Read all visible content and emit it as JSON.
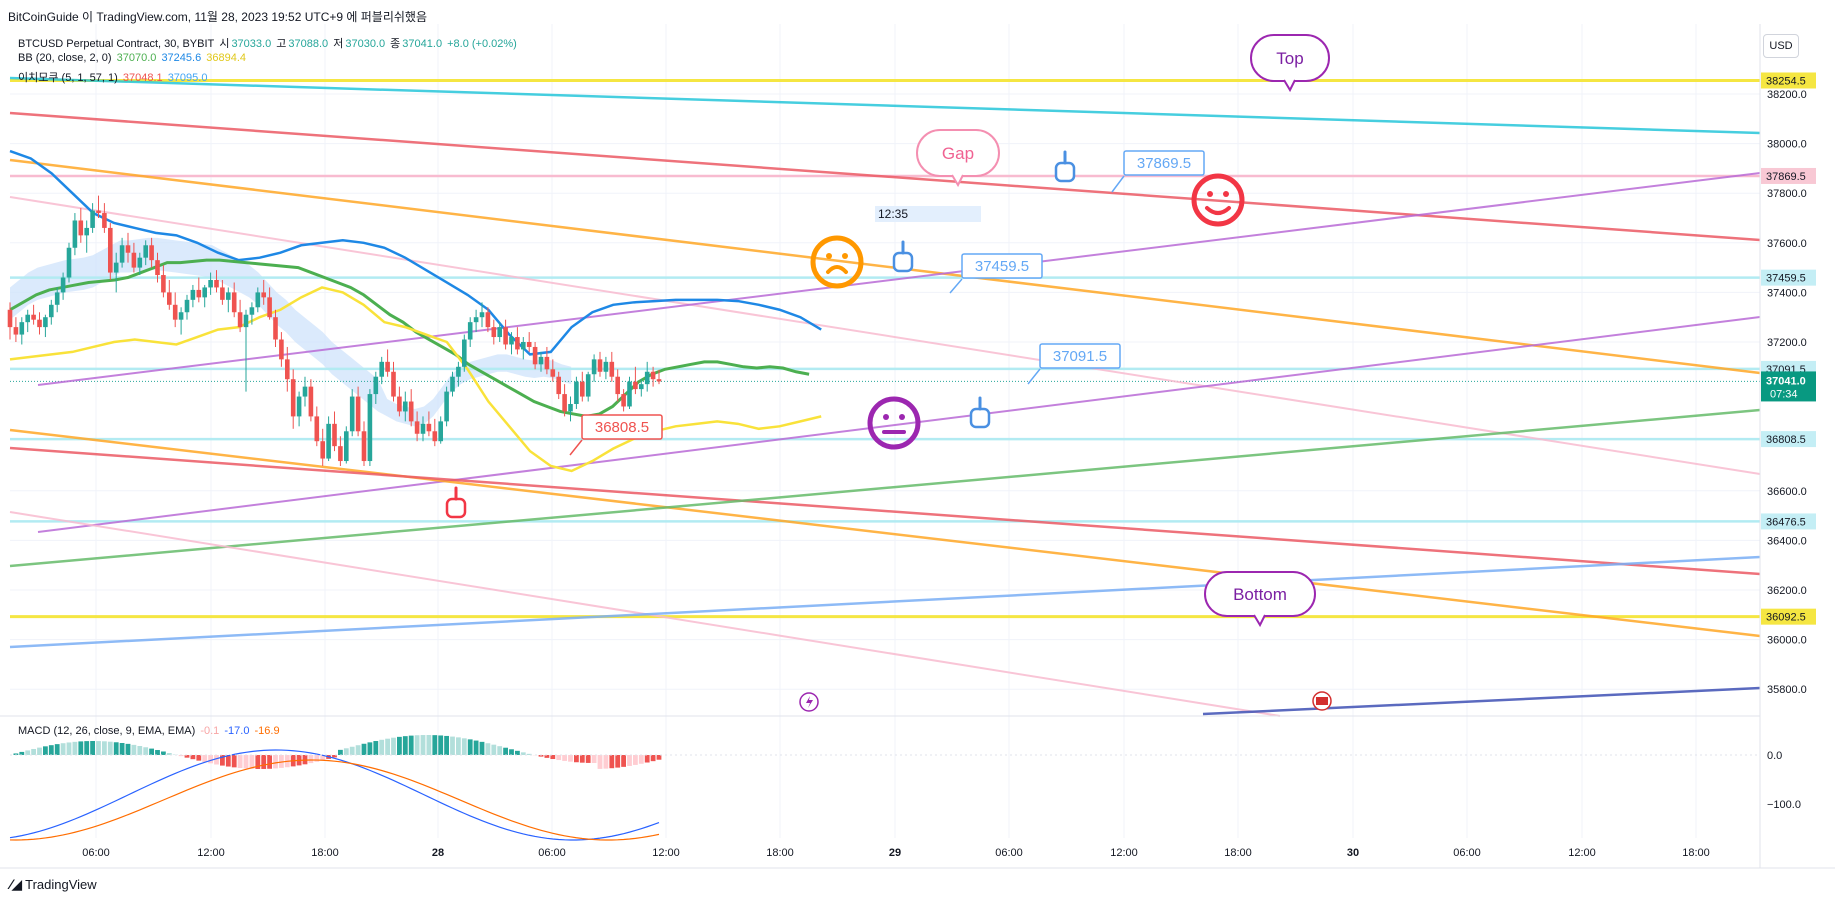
{
  "attribution": "BitCoinGuide 이 TradingView.com, 11월 28, 2023 19:52 UTC+9 에 퍼블리쉬했음",
  "currency_button": "USD",
  "brand": "TradingView",
  "legend": {
    "symbol": "BTCUSD Perpetual Contract, 30, BYBIT",
    "ohlc_open_label": "시",
    "ohlc_open": "37033.0",
    "ohlc_high_label": "고",
    "ohlc_high": "37088.0",
    "ohlc_low_label": "저",
    "ohlc_low": "37030.0",
    "ohlc_close_label": "종",
    "ohlc_close": "37041.0",
    "ohlc_change": "+8.0 (+0.02%)",
    "bb_name": "BB (20, close, 2, 0)",
    "bb_mid": "37070.0",
    "bb_upper": "37245.6",
    "bb_lower": "36894.4",
    "ichimoku_name": "이치모쿠 (5, 1, 57, 1)",
    "ichimoku_a": "37048.1",
    "ichimoku_b": "37095.0",
    "macd_name": "MACD (12, 26, close, 9, EMA, EMA)",
    "macd_hist": "-0.1",
    "macd_macd": "-17.0",
    "macd_signal": "-16.9"
  },
  "colors": {
    "up": "#26a69a",
    "down": "#ef5350",
    "bb_mid": "#4caf50",
    "bb_upper": "#1e88e5",
    "bb_lower": "#f9e23a",
    "cloud": "#cfe3fb",
    "purple": "#b96bd6",
    "orange": "#ffa726",
    "red": "#ec5a64",
    "pink": "#f8bbd0",
    "cyan": "#26c6da",
    "yellow": "#f5e642",
    "green": "#66bb6a",
    "lightblue": "#7aaef5",
    "navy": "#3f51b5",
    "hline": "#b2ebf2"
  },
  "chart_data": {
    "type": "line",
    "x_axis_ticks": [
      "06:00",
      "12:00",
      "18:00",
      "28",
      "06:00",
      "12:00",
      "18:00",
      "29",
      "06:00",
      "12:00",
      "18:00",
      "30",
      "06:00",
      "12:00",
      "18:00"
    ],
    "y_axis_ticks": [
      "38200.0",
      "38000.0",
      "37800.0",
      "37600.0",
      "37400.0",
      "37200.0",
      "36600.0",
      "36400.0",
      "36200.0",
      "36000.0",
      "35800.0"
    ],
    "ylim": [
      35770,
      38590
    ],
    "price_labels": [
      {
        "value": 38254.5,
        "text": "38254.5",
        "kind": "yellow"
      },
      {
        "value": 37869.5,
        "text": "37869.5",
        "kind": "pink"
      },
      {
        "value": 37459.5,
        "text": "37459.5",
        "kind": "cyan"
      },
      {
        "value": 37091.5,
        "text": "37091.5",
        "kind": "cyan"
      },
      {
        "value": 36808.5,
        "text": "36808.5",
        "kind": "cyan"
      },
      {
        "value": 36476.5,
        "text": "36476.5",
        "kind": "cyan"
      },
      {
        "value": 36092.5,
        "text": "36092.5",
        "kind": "yellow"
      }
    ],
    "last_price": {
      "value": 37041.0,
      "text": "37041.0",
      "countdown": "07:34"
    },
    "macd_ticks": [
      "0.0",
      "−100.0"
    ],
    "annotations": {
      "top": "Top",
      "gap": "Gap",
      "bottom": "Bottom",
      "time_label": "12:35",
      "callout_37869": "37869.5",
      "callout_37459": "37459.5",
      "callout_37091": "37091.5",
      "callout_36808": "36808.5"
    },
    "candles": [
      [
        37330,
        37360,
        37210,
        37260
      ],
      [
        37260,
        37300,
        37200,
        37230
      ],
      [
        37230,
        37300,
        37190,
        37280
      ],
      [
        37280,
        37330,
        37240,
        37310
      ],
      [
        37310,
        37350,
        37270,
        37290
      ],
      [
        37290,
        37320,
        37230,
        37260
      ],
      [
        37260,
        37310,
        37220,
        37300
      ],
      [
        37300,
        37370,
        37270,
        37350
      ],
      [
        37350,
        37420,
        37320,
        37400
      ],
      [
        37400,
        37480,
        37370,
        37460
      ],
      [
        37460,
        37600,
        37440,
        37580
      ],
      [
        37580,
        37720,
        37550,
        37690
      ],
      [
        37690,
        37740,
        37600,
        37630
      ],
      [
        37630,
        37690,
        37560,
        37660
      ],
      [
        37660,
        37760,
        37640,
        37730
      ],
      [
        37730,
        37790,
        37700,
        37720
      ],
      [
        37720,
        37760,
        37640,
        37660
      ],
      [
        37660,
        37680,
        37450,
        37480
      ],
      [
        37480,
        37560,
        37400,
        37520
      ],
      [
        37520,
        37620,
        37500,
        37590
      ],
      [
        37590,
        37640,
        37520,
        37560
      ],
      [
        37560,
        37600,
        37480,
        37500
      ],
      [
        37500,
        37560,
        37470,
        37540
      ],
      [
        37540,
        37610,
        37510,
        37590
      ],
      [
        37590,
        37620,
        37500,
        37530
      ],
      [
        37530,
        37560,
        37440,
        37470
      ],
      [
        37470,
        37510,
        37380,
        37400
      ],
      [
        37400,
        37450,
        37330,
        37350
      ],
      [
        37350,
        37400,
        37260,
        37290
      ],
      [
        37290,
        37340,
        37230,
        37320
      ],
      [
        37320,
        37390,
        37290,
        37370
      ],
      [
        37370,
        37430,
        37340,
        37410
      ],
      [
        37410,
        37460,
        37360,
        37380
      ],
      [
        37380,
        37430,
        37340,
        37420
      ],
      [
        37420,
        37480,
        37390,
        37450
      ],
      [
        37450,
        37490,
        37400,
        37420
      ],
      [
        37420,
        37450,
        37350,
        37370
      ],
      [
        37370,
        37420,
        37320,
        37400
      ],
      [
        37400,
        37440,
        37300,
        37320
      ],
      [
        37320,
        37370,
        37240,
        37260
      ],
      [
        37260,
        37330,
        37000,
        37310
      ],
      [
        37310,
        37360,
        37270,
        37340
      ],
      [
        37340,
        37420,
        37320,
        37400
      ],
      [
        37400,
        37450,
        37350,
        37380
      ],
      [
        37380,
        37420,
        37290,
        37300
      ],
      [
        37300,
        37330,
        37180,
        37210
      ],
      [
        37210,
        37240,
        37100,
        37130
      ],
      [
        37130,
        37180,
        37000,
        37050
      ],
      [
        37050,
        37090,
        36850,
        36900
      ],
      [
        36900,
        37000,
        36860,
        36980
      ],
      [
        36980,
        37060,
        36940,
        37020
      ],
      [
        37020,
        37050,
        36880,
        36900
      ],
      [
        36900,
        36940,
        36780,
        36800
      ],
      [
        36800,
        36850,
        36700,
        36730
      ],
      [
        36730,
        36900,
        36720,
        36870
      ],
      [
        36870,
        36920,
        36760,
        36780
      ],
      [
        36780,
        36820,
        36700,
        36720
      ],
      [
        36720,
        36860,
        36710,
        36840
      ],
      [
        36840,
        37010,
        36820,
        36980
      ],
      [
        36980,
        37020,
        36820,
        36840
      ],
      [
        36840,
        36880,
        36700,
        36720
      ],
      [
        36720,
        37010,
        36700,
        36990
      ],
      [
        36990,
        37080,
        36950,
        37060
      ],
      [
        37060,
        37140,
        37030,
        37120
      ],
      [
        37120,
        37170,
        37060,
        37080
      ],
      [
        37080,
        37120,
        36960,
        36980
      ],
      [
        36980,
        37020,
        36900,
        36920
      ],
      [
        36920,
        37000,
        36880,
        36960
      ],
      [
        36960,
        37010,
        36860,
        36880
      ],
      [
        36880,
        36920,
        36800,
        36830
      ],
      [
        36830,
        36900,
        36800,
        36870
      ],
      [
        36870,
        36920,
        36820,
        36840
      ],
      [
        36840,
        36890,
        36780,
        36800
      ],
      [
        36800,
        36900,
        36790,
        36880
      ],
      [
        36880,
        37020,
        36860,
        37000
      ],
      [
        37000,
        37080,
        36980,
        37060
      ],
      [
        37060,
        37120,
        37020,
        37100
      ],
      [
        37100,
        37230,
        37080,
        37210
      ],
      [
        37210,
        37300,
        37180,
        37280
      ],
      [
        37280,
        37330,
        37240,
        37300
      ],
      [
        37300,
        37360,
        37260,
        37320
      ],
      [
        37320,
        37340,
        37240,
        37260
      ],
      [
        37260,
        37290,
        37190,
        37220
      ],
      [
        37220,
        37280,
        37200,
        37260
      ],
      [
        37260,
        37290,
        37170,
        37190
      ],
      [
        37190,
        37240,
        37150,
        37220
      ],
      [
        37220,
        37260,
        37150,
        37170
      ],
      [
        37170,
        37220,
        37130,
        37200
      ],
      [
        37200,
        37240,
        37160,
        37180
      ],
      [
        37180,
        37200,
        37090,
        37110
      ],
      [
        37110,
        37160,
        37080,
        37140
      ],
      [
        37140,
        37180,
        37070,
        37090
      ],
      [
        37090,
        37130,
        37040,
        37060
      ],
      [
        37060,
        37080,
        36970,
        36990
      ],
      [
        36990,
        37030,
        36900,
        36920
      ],
      [
        36920,
        36980,
        36880,
        36950
      ],
      [
        36950,
        37060,
        36930,
        37040
      ],
      [
        37040,
        37080,
        36960,
        36980
      ],
      [
        36980,
        37080,
        36960,
        37070
      ],
      [
        37070,
        37150,
        37040,
        37130
      ],
      [
        37130,
        37160,
        37060,
        37080
      ],
      [
        37080,
        37140,
        37050,
        37120
      ],
      [
        37120,
        37160,
        37040,
        37060
      ],
      [
        37060,
        37090,
        36960,
        36990
      ],
      [
        36990,
        37010,
        36920,
        36940
      ],
      [
        36940,
        37060,
        36930,
        37040
      ],
      [
        37040,
        37100,
        36990,
        37010
      ],
      [
        37010,
        37050,
        36980,
        37030
      ],
      [
        37030,
        37120,
        37000,
        37080
      ],
      [
        37080,
        37100,
        37020,
        37050
      ],
      [
        37050,
        37088,
        37030,
        37041
      ]
    ],
    "bb_mid_series": [
      37330,
      37360,
      37390,
      37410,
      37420,
      37430,
      37440,
      37445,
      37450,
      37460,
      37480,
      37500,
      37520,
      37520,
      37525,
      37530,
      37530,
      37525,
      37520,
      37515,
      37510,
      37505,
      37500,
      37480,
      37460,
      37440,
      37420,
      37390,
      37350,
      37310,
      37280,
      37240,
      37210,
      37180,
      37150,
      37110,
      37080,
      37050,
      37020,
      36990,
      36960,
      36940,
      36920,
      36910,
      36900,
      36910,
      36940,
      36990,
      37040,
      37070,
      37090,
      37100,
      37110,
      37120,
      37120,
      37110,
      37100,
      37095,
      37100,
      37095,
      37080,
      37070
    ],
    "bb_upper_series": [
      37970,
      37940,
      37880,
      37800,
      37720,
      37680,
      37660,
      37640,
      37630,
      37600,
      37560,
      37530,
      37540,
      37560,
      37590,
      37600,
      37610,
      37600,
      37580,
      37540,
      37490,
      37440,
      37390,
      37330,
      37230,
      37150,
      37160,
      37260,
      37320,
      37350,
      37360,
      37365,
      37370,
      37370,
      37370,
      37365,
      37350,
      37330,
      37300,
      37250
    ],
    "bb_lower_series": [
      37130,
      37140,
      37150,
      37160,
      37180,
      37200,
      37210,
      37200,
      37190,
      37220,
      37250,
      37260,
      37300,
      37330,
      37380,
      37420,
      37400,
      37350,
      37280,
      37260,
      37230,
      37200,
      37090,
      36960,
      36860,
      36760,
      36700,
      36680,
      36720,
      36770,
      36810,
      36840,
      36860,
      36870,
      36880,
      36870,
      36850,
      36860,
      36880,
      36900
    ]
  }
}
